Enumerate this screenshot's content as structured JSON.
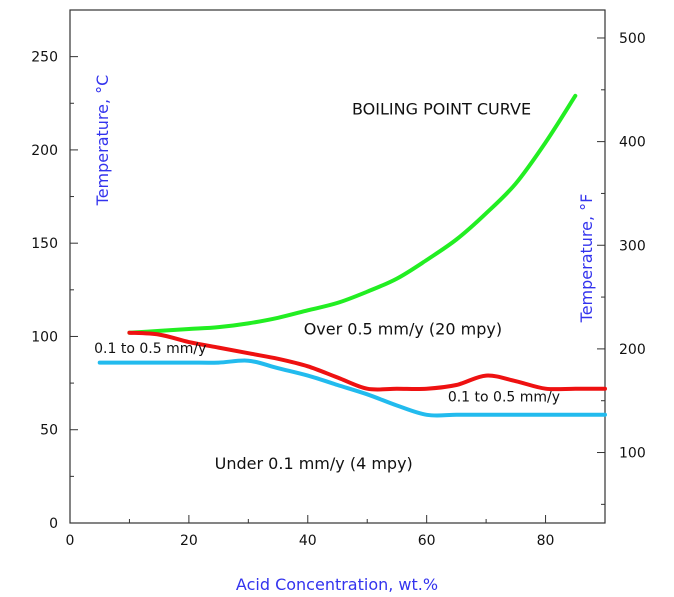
{
  "chart_data": {
    "type": "line",
    "xlabel": "Acid Concentration, wt.%",
    "ylabel_left": "Temperature, °C",
    "ylabel_right": "Temperature, °F",
    "xlim": [
      0,
      90
    ],
    "ylim": [
      0,
      275
    ],
    "y2lim": [
      32,
      527
    ],
    "x_ticks": [
      0,
      20,
      40,
      60,
      80
    ],
    "y_ticks": [
      0,
      50,
      100,
      150,
      200,
      250
    ],
    "y2_ticks": [
      100,
      200,
      300,
      400,
      500
    ],
    "grid": false,
    "colors": {
      "boiling": "#22ee22",
      "red": "#ee1111",
      "blue": "#22bbee",
      "axis_titles": "#3333ee"
    },
    "series": [
      {
        "name": "BOILING POINT CURVE",
        "color": "#22ee22",
        "x": [
          10,
          15,
          20,
          25,
          30,
          35,
          40,
          45,
          50,
          55,
          60,
          65,
          70,
          75,
          80,
          85
        ],
        "y": [
          102,
          103,
          104,
          105,
          107,
          110,
          114,
          118,
          124,
          131,
          141,
          152,
          166,
          182,
          204,
          229
        ]
      },
      {
        "name": "",
        "color": "#ee1111",
        "x": [
          10,
          15,
          20,
          25,
          30,
          35,
          40,
          45,
          50,
          55,
          60,
          65,
          70,
          75,
          80,
          85,
          90
        ],
        "y": [
          102,
          101,
          97,
          94,
          91,
          88,
          84,
          78,
          72,
          72,
          72,
          74,
          79,
          76,
          72,
          72,
          72
        ]
      },
      {
        "name": "",
        "color": "#22bbee",
        "x": [
          5,
          10,
          15,
          20,
          25,
          30,
          35,
          40,
          45,
          50,
          55,
          60,
          65,
          70,
          75,
          80,
          85,
          90
        ],
        "y": [
          86,
          86,
          86,
          86,
          86,
          87,
          83,
          79,
          74,
          69,
          63,
          58,
          58,
          58,
          58,
          58,
          58,
          58
        ]
      }
    ],
    "annotations": [
      {
        "text": "BOILING POINT CURVE",
        "x": 62.5,
        "y": 219,
        "color": "#22ee22",
        "size": "large"
      },
      {
        "text": "Over 0.5 mm/y (20 mpy)",
        "x": 56,
        "y": 101,
        "color": "#111111",
        "size": "large"
      },
      {
        "text": "0.1 to 0.5 mm/y",
        "x": 13.5,
        "y": 91,
        "color": "#111111",
        "size": "small"
      },
      {
        "text": "0.1 to 0.5 mm/y",
        "x": 73,
        "y": 65,
        "color": "#111111",
        "size": "small"
      },
      {
        "text": "Under 0.1 mm/y (4 mpy)",
        "x": 41,
        "y": 29,
        "color": "#111111",
        "size": "large"
      }
    ]
  }
}
